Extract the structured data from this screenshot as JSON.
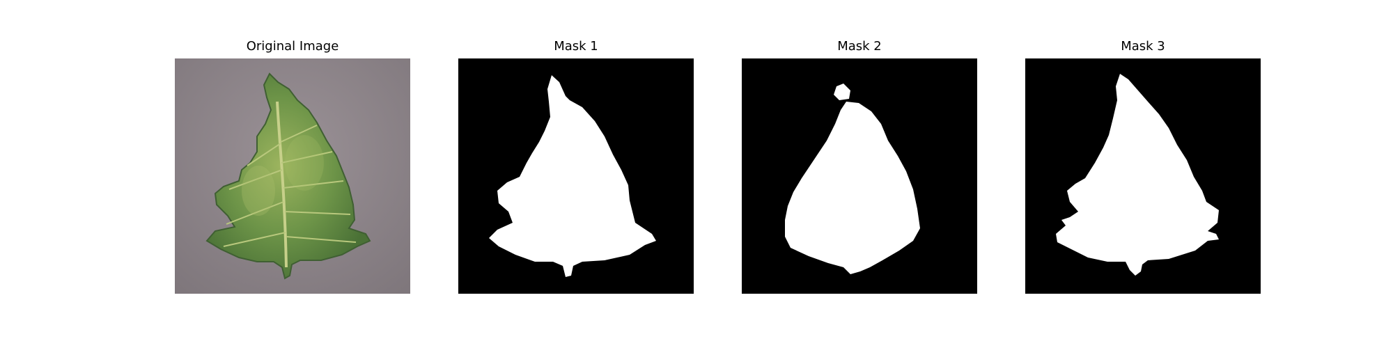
{
  "figure": {
    "panels": [
      {
        "title": "Original Image",
        "kind": "photo",
        "subject": "leaf-photo"
      },
      {
        "title": "Mask 1",
        "kind": "mask"
      },
      {
        "title": "Mask 2",
        "kind": "mask"
      },
      {
        "title": "Mask 3",
        "kind": "mask"
      }
    ]
  },
  "colors": {
    "background": "#ffffff",
    "mask_background": "#000000",
    "mask_foreground": "#ffffff",
    "photo_background": "#948b8f",
    "leaf_green": "#5f8a44",
    "leaf_light": "#9cb45e",
    "leaf_dark": "#3f5f32",
    "vein": "#c7d08a"
  }
}
